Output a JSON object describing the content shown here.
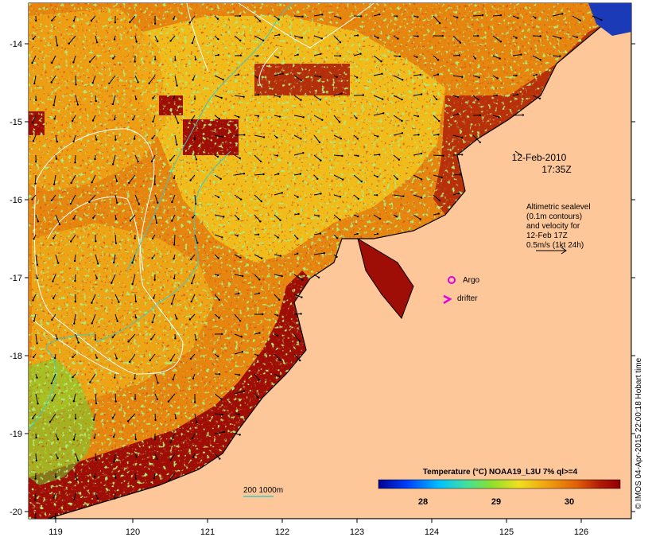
{
  "map": {
    "date": "12-Feb-2010",
    "time": "17:35Z",
    "altimetry_note": [
      "Altimetric sealevel",
      "(0.1m contours)",
      "and velocity for",
      "12-Feb 17Z",
      "0.5m/s (1kt 24h)"
    ],
    "legend_argo": "Argo",
    "legend_drifter": "drifter",
    "bathymetry_label": "200 1000m",
    "colorbar_title": "Temperature (°C) NOAA19_L3U 7% ql>=4",
    "colorbar_ticks": [
      "28",
      "29",
      "30"
    ],
    "credit": "© IMOS 04-Apr-2015 22:00:18 Hobart time",
    "lon_ticks": [
      "119",
      "120",
      "121",
      "122",
      "123",
      "124",
      "125",
      "126"
    ],
    "lat_ticks": [
      "-14",
      "-15",
      "-16",
      "-17",
      "-18",
      "-19",
      "-20"
    ],
    "colors": {
      "land": "#fdc79a",
      "warm": "#9e0d06",
      "mid": "#e6860f",
      "cool": "#f2d11c",
      "cooler": "#6fd52f",
      "contour": "#ffffff",
      "bathymetry": "#40c8c0",
      "argo_marker": "#e000e0"
    }
  }
}
